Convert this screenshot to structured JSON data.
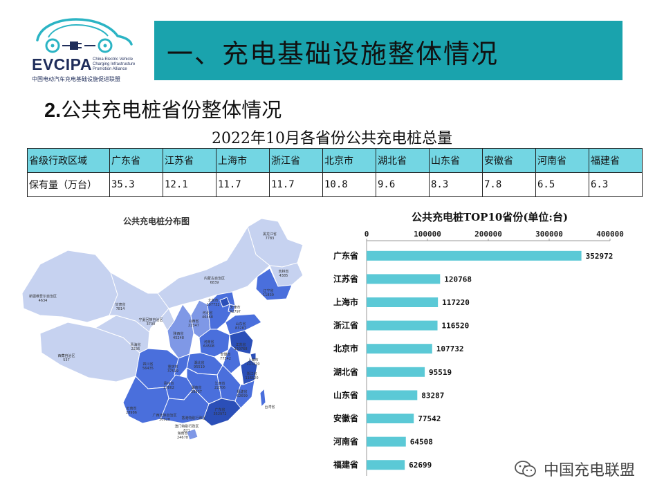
{
  "logo": {
    "brand": "EVCIPA",
    "english": [
      "China Electric Vehicle",
      "Charging Infrastructure",
      "Promotion Alliance"
    ],
    "chinese": "中国电动汽车充电基础设施促进联盟",
    "colors": {
      "accent": "#2bb4c4",
      "dark": "#1f2d5a"
    }
  },
  "header": {
    "title": "一、充电基础设施整体情况",
    "banner_color": "#1aa3ad"
  },
  "subtitle": {
    "number": "2.",
    "text": "公共充电桩省份整体情况"
  },
  "table": {
    "title": "2022年10月各省份公共充电桩总量",
    "row_headers": [
      "省级行政区域",
      "保有量（万台）"
    ],
    "provinces": [
      "广东省",
      "江苏省",
      "上海市",
      "浙江省",
      "北京市",
      "湖北省",
      "山东省",
      "安徽省",
      "河南省",
      "福建省"
    ],
    "values": [
      "35.3",
      "12.1",
      "11.7",
      "11.7",
      "10.8",
      "9.6",
      "8.3",
      "7.8",
      "6.5",
      "6.3"
    ],
    "header_color": "#73d6e3"
  },
  "map": {
    "title": "公共充电桩分布图",
    "labels": [
      {
        "name": "黑龙江省",
        "value": "7783"
      },
      {
        "name": "吉林省",
        "value": "4385"
      },
      {
        "name": "内蒙古自治区",
        "value": "6839"
      },
      {
        "name": "辽宁省",
        "value": "11839"
      },
      {
        "name": "新疆维吾尔自治区",
        "value": "4634"
      },
      {
        "name": "甘肃省",
        "value": "7814"
      },
      {
        "name": "北京市",
        "value": "107732"
      },
      {
        "name": "天津市",
        "value": "42797"
      },
      {
        "name": "河北省",
        "value": "46468"
      },
      {
        "name": "宁夏回族自治区",
        "value": "3700"
      },
      {
        "name": "山西省",
        "value": "22347"
      },
      {
        "name": "山东省",
        "value": "83287"
      },
      {
        "name": "青海省",
        "value": "2236"
      },
      {
        "name": "陕西省",
        "value": "45248"
      },
      {
        "name": "河南省",
        "value": "64508"
      },
      {
        "name": "江苏省",
        "value": "120768"
      },
      {
        "name": "安徽省",
        "value": "77542"
      },
      {
        "name": "上海市",
        "value": "117220"
      },
      {
        "name": "西藏自治区",
        "value": "537"
      },
      {
        "name": "湖北省",
        "value": "95519"
      },
      {
        "name": "四川省",
        "value": "56435"
      },
      {
        "name": "重庆市",
        "value": "37519"
      },
      {
        "name": "浙江省",
        "value": "116520"
      },
      {
        "name": "贵州省",
        "value": "17802"
      },
      {
        "name": "湖南省",
        "value": "38937"
      },
      {
        "name": "江西省",
        "value": "22706"
      },
      {
        "name": "福建省",
        "value": "62699"
      },
      {
        "name": "云南省",
        "value": "28986"
      },
      {
        "name": "广西壮族自治区",
        "value": "30928"
      },
      {
        "name": "广东省",
        "value": "352972"
      },
      {
        "name": "台湾省",
        "value": ""
      },
      {
        "name": "香港特别行政区",
        "value": ""
      },
      {
        "name": "澳门特别行政区",
        "value": "871"
      },
      {
        "name": "海南省",
        "value": "24678"
      }
    ],
    "colors": {
      "light": "#c6d2f0",
      "mid": "#7f98e6",
      "strong": "#4a6fdc",
      "deep": "#2b4fb8",
      "stroke": "#ffffff"
    }
  },
  "chart_data": {
    "type": "bar",
    "orientation": "horizontal",
    "title": "公共充电桩TOP10省份(单位:台)",
    "categories": [
      "广东省",
      "江苏省",
      "上海市",
      "浙江省",
      "北京市",
      "湖北省",
      "山东省",
      "安徽省",
      "河南省",
      "福建省"
    ],
    "values": [
      352972,
      120768,
      117220,
      116520,
      107732,
      95519,
      83287,
      77542,
      64508,
      62699
    ],
    "value_labels": [
      "352972",
      "120768",
      "117220",
      "116520",
      "107732",
      "95519",
      "83287",
      "77542",
      "64508",
      "62699"
    ],
    "xlim": [
      0,
      400000
    ],
    "xticks": [
      0,
      100000,
      200000,
      300000,
      400000
    ],
    "xtick_labels": [
      "0",
      "100000",
      "200000",
      "300000",
      "400000"
    ],
    "axis_position": "top",
    "grid": false,
    "bar_color": "#5bc9d6"
  },
  "watermark": {
    "text": "中国充电联盟"
  }
}
